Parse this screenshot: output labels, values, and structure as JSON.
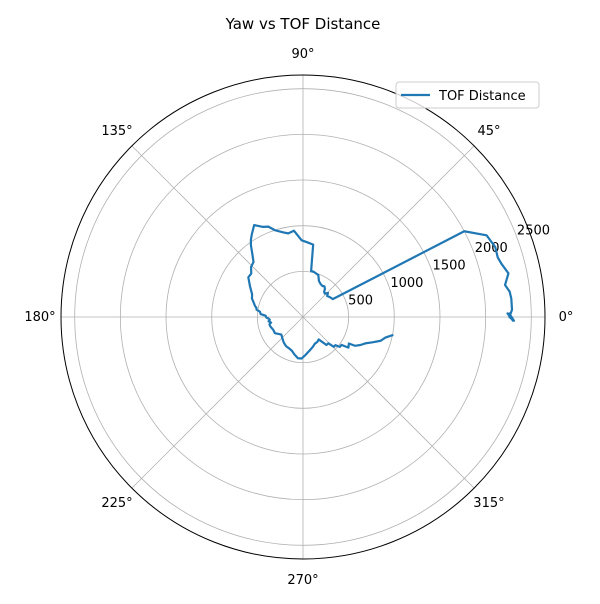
{
  "chart_data": {
    "type": "line",
    "projection": "polar",
    "title": "Yaw vs TOF Distance",
    "theta_unit": "degrees",
    "angle_tick_labels": [
      "0°",
      "45°",
      "90°",
      "135°",
      "180°",
      "225°",
      "270°",
      "315°"
    ],
    "radial_tick_labels": [
      "500",
      "1000",
      "1500",
      "2000",
      "2500"
    ],
    "radial_ticks": [
      500,
      1000,
      1500,
      2000,
      2500
    ],
    "rlim": [
      0,
      2650
    ],
    "grid": true,
    "legend": {
      "location": "upper-right",
      "entries": [
        "TOF Distance"
      ]
    },
    "series": [
      {
        "name": "TOF Distance",
        "color": "#1f77b4",
        "theta": [
          -11.5,
          -14,
          -17,
          -20,
          -23,
          -26,
          -29,
          -30,
          -34,
          -36,
          -39,
          -41,
          -44,
          -46,
          -50,
          -55,
          -60,
          -66,
          -72,
          -79,
          -86,
          -92,
          -97,
          -103,
          -108,
          -114,
          -120,
          -127,
          -134,
          -141,
          -150,
          -157,
          -163,
          -166,
          -168,
          -170,
          -173,
          -175,
          -177,
          -179,
          178,
          176,
          173,
          171,
          169,
          167,
          164,
          160,
          156,
          150,
          144,
          140,
          136,
          132,
          129,
          126,
          124,
          122,
          118,
          114,
          111,
          108,
          103,
          100,
          96,
          91,
          87,
          82,
          80,
          77,
          74,
          70,
          66,
          62,
          58,
          55,
          52,
          50,
          47,
          44,
          41,
          38,
          35,
          31,
          28,
          24,
          20,
          17,
          15,
          12,
          9,
          7,
          5,
          2,
          0,
          -1,
          1,
          -1,
          1
        ],
        "r": [
          1000,
          930,
          890,
          810,
          740,
          700,
          650,
          580,
          600,
          520,
          520,
          470,
          470,
          400,
          400,
          300,
          315,
          320,
          345,
          375,
          415,
          455,
          455,
          420,
          390,
          375,
          370,
          350,
          325,
          305,
          355,
          355,
          370,
          375,
          375,
          355,
          380,
          365,
          375,
          400,
          410,
          465,
          475,
          515,
          520,
          540,
          560,
          595,
          610,
          670,
          740,
          740,
          790,
          810,
          880,
          970,
          1020,
          1060,
          1140,
          1080,
          1060,
          1000,
          950,
          930,
          950,
          840,
          820,
          800,
          510,
          510,
          500,
          490,
          430,
          410,
          400,
          410,
          390,
          360,
          350,
          380,
          350,
          360,
          370,
          380,
          2000,
          2200,
          2240,
          2230,
          2250,
          2300,
          2240,
          2280,
          2290,
          2290,
          2260,
          2310,
          2260,
          2300,
          2240
        ]
      }
    ]
  }
}
